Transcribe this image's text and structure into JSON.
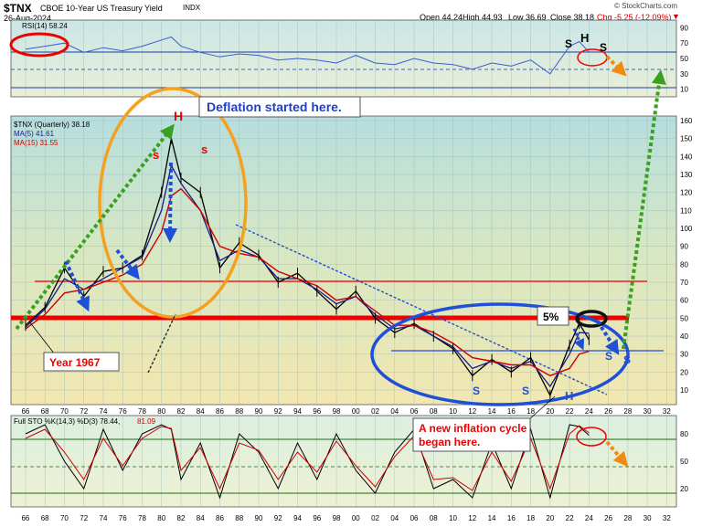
{
  "header": {
    "symbol": "$TNX",
    "name": "CBOE 10-Year US Treasury Yield",
    "exchange": "INDX",
    "date": "26-Aug-2024",
    "open": "Open 44.24",
    "high": "High 44.93",
    "low": "Low 36.69",
    "close": "Close 38.18",
    "change": "Chg -5.25 (-12.09%)",
    "change_arrow": "▼",
    "credit": "© StockCharts.com"
  },
  "rsi_panel": {
    "label": "RSI(14) 58.24",
    "ticks": [
      "90",
      "70",
      "50",
      "30",
      "10"
    ]
  },
  "price_panel": {
    "legend_title": "$TNX (Quarterly) 38.18",
    "legend_ma5": "MA(5) 41.61",
    "legend_ma15": "MA(15) 31.55",
    "ticks": [
      "160",
      "150",
      "140",
      "130",
      "120",
      "110",
      "100",
      "90",
      "80",
      "70",
      "60",
      "50",
      "40",
      "30",
      "20",
      "10"
    ]
  },
  "sto_panel": {
    "label_a": "Full STO %K(14,3) %D(3) 78.44,",
    "label_b": "81.09",
    "ticks": [
      "80",
      "50",
      "20"
    ]
  },
  "x_ticks": [
    "66",
    "68",
    "70",
    "72",
    "74",
    "76",
    "78",
    "80",
    "82",
    "84",
    "86",
    "88",
    "90",
    "92",
    "94",
    "96",
    "98",
    "00",
    "02",
    "04",
    "06",
    "08",
    "10",
    "12",
    "14",
    "16",
    "18",
    "20",
    "22",
    "24",
    "26",
    "28",
    "30",
    "32"
  ],
  "annotations": {
    "deflation": "Deflation started here.",
    "year1967": "Year 1967",
    "five_pct": "5%",
    "inflation_line1": "A new inflation cycle",
    "inflation_line2": "began here.",
    "h_top": "H",
    "s_left": "s",
    "s_right": "s",
    "rsi_s1": "S",
    "rsi_h": "H",
    "rsi_s2": "S",
    "s_bottom1": "S",
    "s_bottom2": "S",
    "h_bottom": "H",
    "s_recent1": "S",
    "s_recent2": "S"
  },
  "colors": {
    "price_line": "#000000",
    "ma5": "#1a1a8c",
    "ma15": "#cc0000",
    "rsi_line": "#3b5bd6",
    "sto_k": "#000000",
    "sto_d": "#cc0000",
    "resistance": "#ee0000",
    "ellipse_blue": "#1f4fd6",
    "ellipse_orange": "#f4a020",
    "green_arrow": "#3aa020",
    "blue_arrow": "#1f4fd6",
    "orange_arrow": "#f08a10"
  },
  "chart_data": [
    {
      "type": "line",
      "title": "$TNX CBOE 10-Year US Treasury Yield INDX",
      "subtitle": "Quarterly",
      "x": [
        1966,
        1968,
        1970,
        1972,
        1974,
        1976,
        1978,
        1980,
        1981,
        1982,
        1984,
        1986,
        1988,
        1990,
        1992,
        1994,
        1996,
        1998,
        2000,
        2002,
        2004,
        2006,
        2008,
        2010,
        2012,
        2014,
        2016,
        2018,
        2020,
        2022,
        2023,
        2024
      ],
      "series": [
        {
          "name": "$TNX (Quarterly) 38.18",
          "values": [
            46,
            56,
            78,
            62,
            76,
            78,
            85,
            120,
            150,
            128,
            120,
            78,
            92,
            85,
            70,
            75,
            65,
            55,
            65,
            50,
            42,
            47,
            40,
            33,
            18,
            27,
            20,
            28,
            7,
            35,
            47,
            38
          ]
        },
        {
          "name": "MA(5) 41.61",
          "values": [
            45,
            55,
            72,
            66,
            72,
            78,
            84,
            110,
            135,
            125,
            110,
            82,
            88,
            84,
            72,
            72,
            66,
            58,
            62,
            52,
            44,
            46,
            40,
            34,
            22,
            26,
            22,
            26,
            12,
            30,
            42,
            41.61
          ]
        },
        {
          "name": "MA(15) 31.55",
          "values": [
            44,
            52,
            64,
            66,
            70,
            74,
            80,
            98,
            118,
            122,
            110,
            90,
            86,
            84,
            76,
            72,
            68,
            60,
            62,
            54,
            46,
            46,
            42,
            36,
            28,
            26,
            24,
            24,
            18,
            22,
            30,
            31.55
          ]
        }
      ],
      "ylim": [
        0,
        165
      ],
      "xlim": [
        1964.5,
        2033
      ]
    },
    {
      "type": "line",
      "title": "RSI(14) 58.24",
      "x": [
        1966,
        1968,
        1970,
        1972,
        1974,
        1976,
        1978,
        1980,
        1981,
        1982,
        1984,
        1986,
        1988,
        1990,
        1992,
        1994,
        1996,
        1998,
        2000,
        2002,
        2004,
        2006,
        2008,
        2010,
        2012,
        2014,
        2016,
        2018,
        2020,
        2022,
        2023,
        2024
      ],
      "series": [
        {
          "name": "RSI(14)",
          "values": [
            62,
            66,
            70,
            58,
            64,
            60,
            66,
            74,
            78,
            66,
            58,
            52,
            56,
            54,
            48,
            50,
            48,
            44,
            54,
            44,
            42,
            50,
            44,
            42,
            36,
            44,
            40,
            48,
            30,
            66,
            72,
            58.24
          ]
        }
      ],
      "ylim": [
        0,
        100
      ]
    },
    {
      "type": "line",
      "title": "Full STO %K(14,3) %D(3) 78.44, 81.09",
      "x": [
        1966,
        1968,
        1970,
        1972,
        1974,
        1976,
        1978,
        1980,
        1981,
        1982,
        1984,
        1986,
        1988,
        1990,
        1992,
        1994,
        1996,
        1998,
        2000,
        2002,
        2004,
        2006,
        2008,
        2010,
        2012,
        2014,
        2016,
        2018,
        2020,
        2022,
        2023,
        2024
      ],
      "series": [
        {
          "name": "%K",
          "values": [
            80,
            90,
            50,
            20,
            85,
            40,
            80,
            90,
            85,
            30,
            70,
            10,
            80,
            60,
            20,
            70,
            30,
            80,
            40,
            15,
            60,
            85,
            20,
            30,
            10,
            70,
            20,
            85,
            10,
            90,
            88,
            78.44
          ]
        },
        {
          "name": "%D",
          "values": [
            75,
            85,
            60,
            30,
            75,
            45,
            75,
            88,
            86,
            40,
            65,
            20,
            70,
            62,
            30,
            60,
            38,
            72,
            45,
            22,
            55,
            78,
            30,
            32,
            18,
            60,
            28,
            75,
            20,
            80,
            89,
            81.09
          ]
        }
      ],
      "ylim": [
        0,
        100
      ]
    }
  ]
}
